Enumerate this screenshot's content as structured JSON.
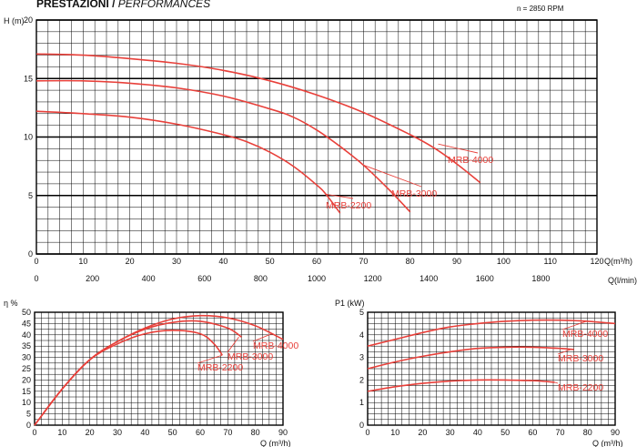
{
  "header": {
    "title": "PRESTAZIONI /",
    "title_sub": "PERFORMANCES",
    "rpm": "n = 2850 RPM"
  },
  "colors": {
    "curve": "#e8403a",
    "grid": "#000000"
  },
  "chart_data": [
    {
      "id": "head",
      "type": "line",
      "title": "PRESTAZIONI / PERFORMANCES",
      "ylabel": "H (m)",
      "xlabel": "Q(m³/h)",
      "xlabel2": "Q(l/min)",
      "xlim": [
        0,
        120
      ],
      "ylim": [
        0,
        20
      ],
      "x_ticks": [
        0,
        10,
        20,
        30,
        40,
        50,
        60,
        70,
        80,
        90,
        100,
        110,
        120
      ],
      "y_ticks": [
        0,
        5,
        10,
        15,
        20
      ],
      "x2_ticks": [
        0,
        200,
        400,
        600,
        800,
        1000,
        1200,
        1400,
        1600,
        1800
      ],
      "series": [
        {
          "name": "MRB-4000",
          "x": [
            0,
            10,
            20,
            30,
            40,
            50,
            60,
            70,
            80,
            85,
            90,
            95
          ],
          "y": [
            17.1,
            17.0,
            16.7,
            16.3,
            15.7,
            14.8,
            13.6,
            12.1,
            10.2,
            9.1,
            7.7,
            6.1
          ]
        },
        {
          "name": "MRB-3000",
          "x": [
            0,
            10,
            20,
            30,
            40,
            50,
            55,
            60,
            65,
            70,
            75,
            80
          ],
          "y": [
            14.8,
            14.8,
            14.6,
            14.2,
            13.5,
            12.4,
            11.7,
            10.6,
            9.2,
            7.6,
            5.7,
            3.6
          ]
        },
        {
          "name": "MRB-2200",
          "x": [
            0,
            10,
            20,
            30,
            40,
            45,
            50,
            55,
            60,
            62,
            65
          ],
          "y": [
            12.2,
            12.0,
            11.7,
            11.1,
            10.2,
            9.6,
            8.7,
            7.5,
            5.9,
            5.1,
            3.5
          ]
        }
      ],
      "labels": [
        {
          "text": "MRB-4000",
          "series": "MRB-4000"
        },
        {
          "text": "MRB-3000",
          "series": "MRB-3000"
        },
        {
          "text": "MRB-2200",
          "series": "MRB-2200"
        }
      ]
    },
    {
      "id": "efficiency",
      "type": "line",
      "ylabel": "η %",
      "xlabel": "Q (m³/h)",
      "xlim": [
        0,
        90
      ],
      "ylim": [
        0,
        50
      ],
      "x_ticks": [
        0,
        10,
        20,
        30,
        40,
        50,
        60,
        70,
        80,
        90
      ],
      "y_ticks": [
        0,
        5,
        10,
        15,
        20,
        25,
        30,
        35,
        40,
        45,
        50
      ],
      "series": [
        {
          "name": "MRB-4000",
          "x": [
            0,
            10,
            20,
            30,
            40,
            50,
            60,
            70,
            80,
            90
          ],
          "y": [
            0,
            16,
            29,
            37,
            43,
            47,
            48.5,
            47.5,
            44,
            38
          ]
        },
        {
          "name": "MRB-3000",
          "x": [
            0,
            10,
            20,
            30,
            40,
            50,
            60,
            70,
            75
          ],
          "y": [
            0,
            16,
            29,
            37,
            42.5,
            45.5,
            46,
            43,
            39
          ]
        },
        {
          "name": "MRB-2200",
          "x": [
            0,
            10,
            20,
            30,
            40,
            50,
            60,
            65,
            68
          ],
          "y": [
            0,
            16,
            29,
            36,
            40.5,
            42,
            40.5,
            36,
            31
          ]
        }
      ],
      "labels": [
        {
          "text": "MRB-4000",
          "series": "MRB-4000"
        },
        {
          "text": "MRB-3000",
          "series": "MRB-3000"
        },
        {
          "text": "MRB-2200",
          "series": "MRB-2200"
        }
      ]
    },
    {
      "id": "power",
      "type": "line",
      "ylabel": "P1 (kW)",
      "xlabel": "Q (m³/h)",
      "xlim": [
        0,
        90
      ],
      "ylim": [
        0,
        5
      ],
      "x_ticks": [
        0,
        10,
        20,
        30,
        40,
        50,
        60,
        70,
        80,
        90
      ],
      "y_ticks": [
        0,
        1,
        2,
        3,
        4,
        5
      ],
      "series": [
        {
          "name": "MRB-4000",
          "x": [
            0,
            10,
            20,
            30,
            40,
            50,
            60,
            70,
            80,
            90
          ],
          "y": [
            3.5,
            3.8,
            4.1,
            4.35,
            4.5,
            4.6,
            4.65,
            4.65,
            4.6,
            4.5
          ]
        },
        {
          "name": "MRB-3000",
          "x": [
            0,
            10,
            20,
            30,
            40,
            50,
            60,
            70,
            75
          ],
          "y": [
            2.5,
            2.8,
            3.05,
            3.25,
            3.4,
            3.45,
            3.45,
            3.4,
            3.35
          ]
        },
        {
          "name": "MRB-2200",
          "x": [
            0,
            10,
            20,
            30,
            40,
            50,
            60,
            65,
            68
          ],
          "y": [
            1.5,
            1.7,
            1.85,
            1.95,
            2.0,
            2.0,
            1.97,
            1.93,
            1.9
          ]
        }
      ],
      "labels": [
        {
          "text": "MRB-4000",
          "series": "MRB-4000"
        },
        {
          "text": "MRB-3000",
          "series": "MRB-3000"
        },
        {
          "text": "MRB-2200",
          "series": "MRB-2200"
        }
      ]
    }
  ]
}
